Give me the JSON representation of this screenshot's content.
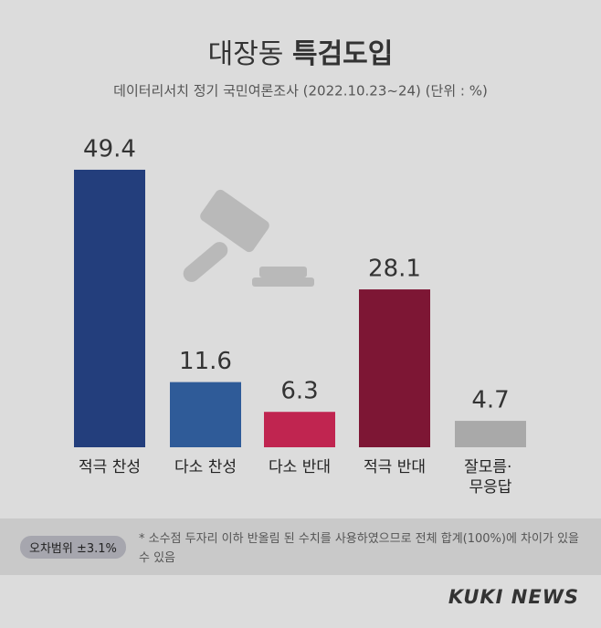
{
  "chart_data": {
    "type": "bar",
    "title": "대장동",
    "title_bold": "특검도입",
    "subtitle": "데이터리서치 정기 국민여론조사 (2022.10.23~24)  (단위 : %)",
    "categories": [
      "적극 찬성",
      "다소 찬성",
      "다소 반대",
      "적극 반대",
      "잘모름·\n무응답"
    ],
    "values": [
      49.4,
      11.6,
      6.3,
      28.1,
      4.7
    ],
    "colors": [
      "#233e7c",
      "#2f5b98",
      "#c02550",
      "#7d1634",
      "#a9a9a9"
    ],
    "ylim": [
      0,
      55
    ]
  },
  "footer": {
    "margin_of_error": "오차범위 ±3.1%",
    "note": "* 소수점 두자리 이하 반올림 된 수치를 사용하였으므로 전체 합계(100%)에 차이가 있을 수 있음",
    "logo": "KUKI NEWS"
  }
}
